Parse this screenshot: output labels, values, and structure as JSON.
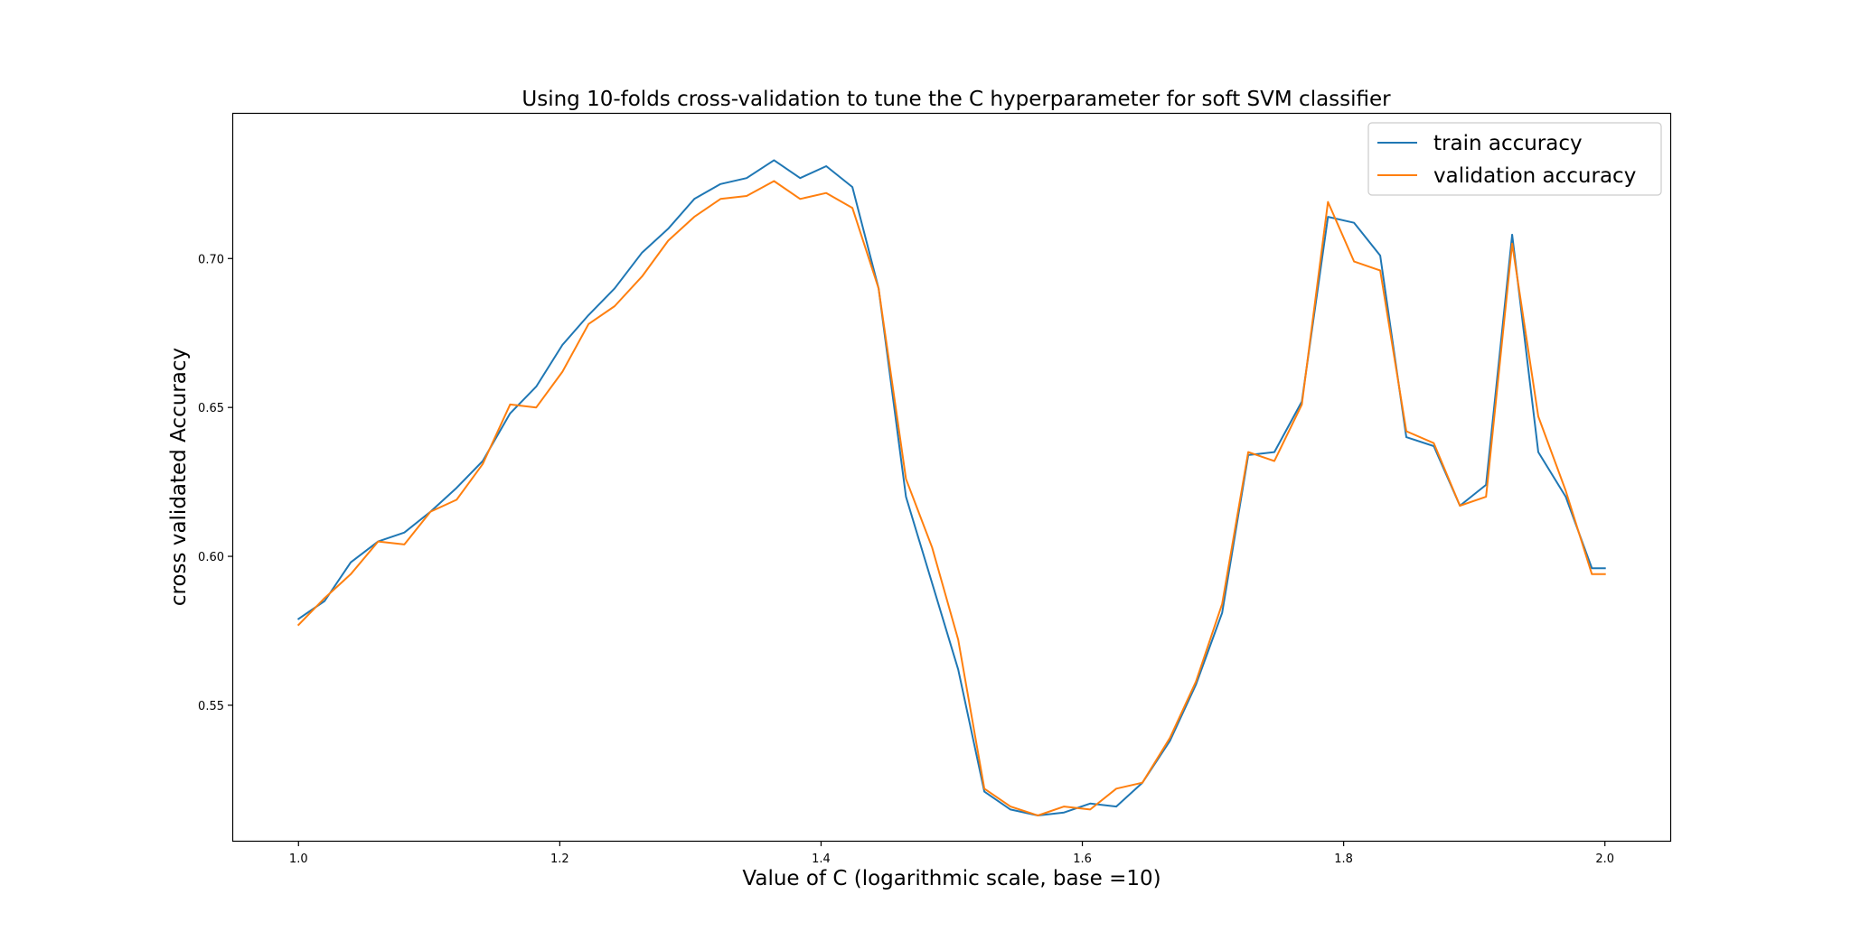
{
  "chart_data": {
    "type": "line",
    "title": "Using 10-folds cross-validation to tune the C hyperparameter for soft SVM classifier",
    "xlabel": "Value of C (logarithmic scale, base =10)",
    "ylabel": "cross validated Accuracy",
    "xlim": [
      0.95,
      2.05
    ],
    "ylim": [
      0.5045,
      0.7486
    ],
    "x_ticks": [
      1.0,
      1.2,
      1.4,
      1.6,
      1.8,
      2.0
    ],
    "x_tick_labels": [
      "1.0",
      "1.2",
      "1.4",
      "1.6",
      "1.8",
      "2.0"
    ],
    "y_ticks": [
      0.55,
      0.6,
      0.65,
      0.7
    ],
    "y_tick_labels": [
      "0.55",
      "0.60",
      "0.65",
      "0.70"
    ],
    "grid": false,
    "legend_position": "top-right",
    "x": [
      1.0,
      1.02,
      1.04,
      1.061,
      1.081,
      1.101,
      1.121,
      1.141,
      1.162,
      1.182,
      1.202,
      1.222,
      1.242,
      1.263,
      1.283,
      1.303,
      1.323,
      1.343,
      1.364,
      1.384,
      1.404,
      1.424,
      1.444,
      1.465,
      1.485,
      1.505,
      1.525,
      1.545,
      1.566,
      1.586,
      1.606,
      1.626,
      1.646,
      1.667,
      1.687,
      1.707,
      1.727,
      1.747,
      1.768,
      1.788,
      1.808,
      1.828,
      1.848,
      1.869,
      1.889,
      1.909,
      1.929,
      1.949,
      1.97,
      1.99,
      2.0
    ],
    "series": [
      {
        "name": "train accuracy",
        "color": "#1f77b4",
        "values": [
          0.579,
          0.585,
          0.598,
          0.605,
          0.608,
          0.615,
          0.623,
          0.632,
          0.648,
          0.657,
          0.671,
          0.681,
          0.69,
          0.702,
          0.71,
          0.72,
          0.725,
          0.727,
          0.733,
          0.727,
          0.731,
          0.724,
          0.69,
          0.62,
          0.591,
          0.562,
          0.521,
          0.515,
          0.513,
          0.514,
          0.517,
          0.516,
          0.524,
          0.538,
          0.557,
          0.581,
          0.634,
          0.635,
          0.652,
          0.714,
          0.712,
          0.701,
          0.64,
          0.637,
          0.617,
          0.624,
          0.708,
          0.635,
          0.62,
          0.596,
          0.596
        ]
      },
      {
        "name": "validation accuracy",
        "color": "#ff7f0e",
        "values": [
          0.577,
          0.586,
          0.594,
          0.605,
          0.604,
          0.615,
          0.619,
          0.631,
          0.651,
          0.65,
          0.662,
          0.678,
          0.684,
          0.694,
          0.706,
          0.714,
          0.72,
          0.721,
          0.726,
          0.72,
          0.722,
          0.717,
          0.69,
          0.626,
          0.603,
          0.572,
          0.522,
          0.516,
          0.513,
          0.516,
          0.515,
          0.522,
          0.524,
          0.539,
          0.558,
          0.584,
          0.635,
          0.632,
          0.651,
          0.719,
          0.699,
          0.696,
          0.642,
          0.638,
          0.617,
          0.62,
          0.705,
          0.647,
          0.622,
          0.594,
          0.594
        ]
      }
    ]
  }
}
